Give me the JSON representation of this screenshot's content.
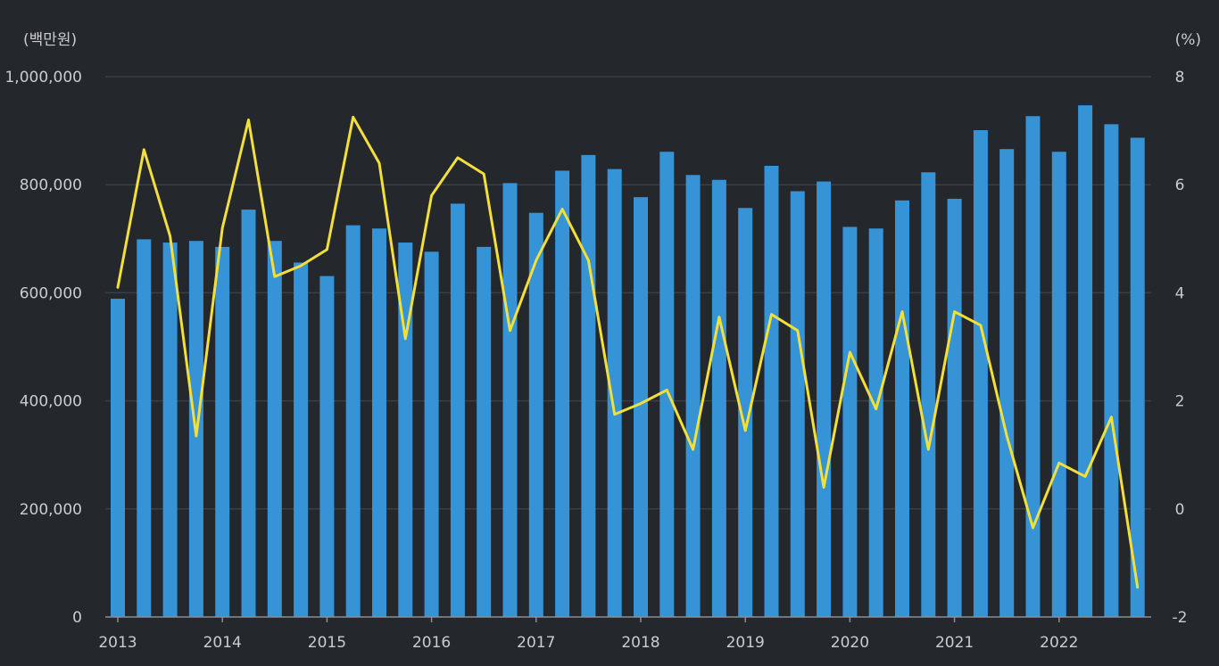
{
  "chart_data": {
    "type": "bar+line",
    "left_unit": "(백만원)",
    "right_unit": "(%)",
    "left_axis": {
      "ylim": [
        0,
        1000000
      ],
      "ticks": [
        0,
        200000,
        400000,
        600000,
        800000,
        1000000
      ],
      "tick_labels": [
        "0",
        "200,000",
        "400,000",
        "600,000",
        "800,000",
        "1,000,000"
      ]
    },
    "right_axis": {
      "ylim": [
        -2,
        8
      ],
      "ticks": [
        -2,
        0,
        2,
        4,
        6,
        8
      ],
      "tick_labels": [
        "-2",
        "0",
        "2",
        "4",
        "6",
        "8"
      ]
    },
    "x_tick_labels": [
      "2013",
      "2014",
      "2015",
      "2016",
      "2017",
      "2018",
      "2019",
      "2020",
      "2021",
      "2022"
    ],
    "grid": true,
    "colors": {
      "bars": "#3593d6",
      "line": "#f2df3b"
    },
    "series": [
      {
        "type": "bar",
        "axis": "left",
        "values": [
          589000,
          699000,
          693000,
          696000,
          685000,
          754000,
          696000,
          656000,
          631000,
          725000,
          719000,
          693000,
          676000,
          765000,
          685000,
          803000,
          748000,
          826000,
          855000,
          829000,
          777000,
          861000,
          818000,
          809000,
          757000,
          835000,
          788000,
          806000,
          722000,
          719000,
          771000,
          823000,
          774000,
          901000,
          866000,
          927000,
          861000,
          947000,
          912000,
          887000
        ]
      },
      {
        "type": "line",
        "axis": "right",
        "values": [
          4.1,
          6.65,
          5.05,
          1.35,
          5.2,
          7.2,
          4.3,
          4.5,
          4.8,
          7.25,
          6.4,
          3.15,
          5.8,
          6.5,
          6.2,
          3.3,
          4.6,
          5.55,
          4.6,
          1.75,
          1.95,
          2.2,
          1.1,
          3.55,
          1.45,
          3.6,
          3.3,
          0.4,
          2.9,
          1.85,
          3.65,
          1.1,
          3.65,
          3.4,
          1.35,
          -0.35,
          0.85,
          0.6,
          1.7,
          -1.45
        ]
      }
    ]
  }
}
